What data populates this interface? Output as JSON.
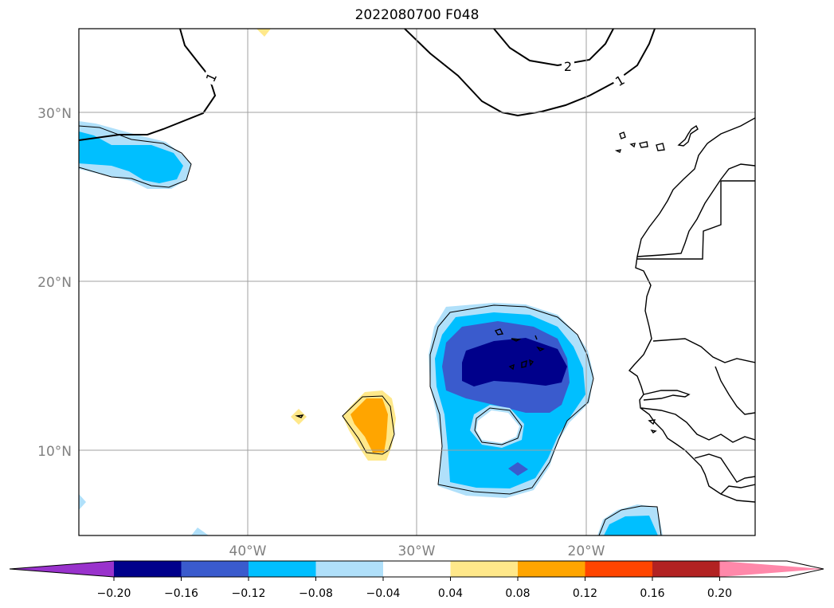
{
  "title": "2022080700 F048",
  "map": {
    "lat_labels": [
      "30°N",
      "20°N",
      "10°N"
    ],
    "lon_labels": [
      "40°W",
      "30°W",
      "20°W"
    ],
    "contour_labels": [
      "1",
      "2",
      "1"
    ]
  },
  "colorbar": {
    "ticks": [
      "−0.20",
      "−0.16",
      "−0.12",
      "−0.08",
      "−0.04",
      "0.04",
      "0.08",
      "0.12",
      "0.16",
      "0.20"
    ],
    "colors": [
      "#9932cc",
      "#00008b",
      "#3a5bcd",
      "#00bfff",
      "#b0e0fa",
      "#ffffff",
      "#ffe88a",
      "#ffa500",
      "#ff4500",
      "#b22222",
      "#ff88aa"
    ]
  }
}
